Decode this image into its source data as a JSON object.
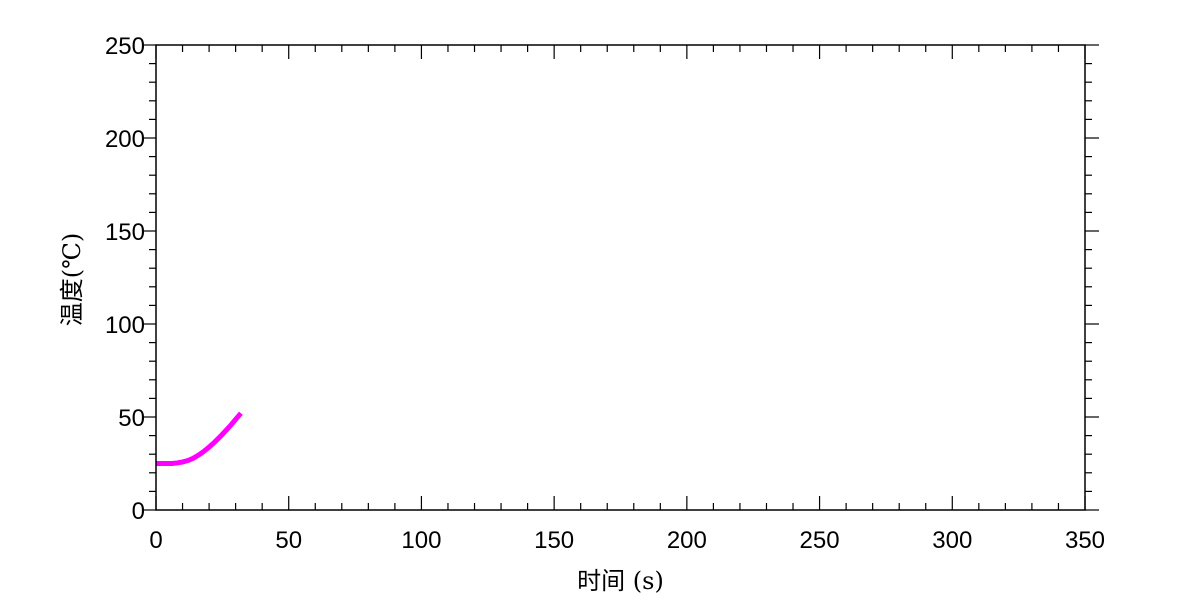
{
  "chart_data": {
    "type": "line",
    "title": "",
    "xlabel": "时间 (s)",
    "ylabel": "温度(℃)",
    "xlim": [
      0,
      350
    ],
    "ylim": [
      0,
      250
    ],
    "x_ticks": [
      "0",
      "50",
      "100",
      "150",
      "200",
      "250",
      "300",
      "350"
    ],
    "y_ticks": [
      "0",
      "50",
      "100",
      "150",
      "200",
      "250"
    ],
    "x_minor_step": 10,
    "y_minor_step": 10,
    "grid": false,
    "series": [
      {
        "color": "#ff00ff",
        "x": [
          0,
          2,
          4,
          6,
          8,
          10,
          12,
          14,
          16,
          18,
          20,
          22,
          24,
          26,
          28,
          30,
          32
        ],
        "y": [
          25,
          25,
          25,
          25,
          25.3,
          25.8,
          26.6,
          27.8,
          29.5,
          31.5,
          33.8,
          36.4,
          39.2,
          42.2,
          45.3,
          48.7,
          52
        ]
      }
    ]
  }
}
